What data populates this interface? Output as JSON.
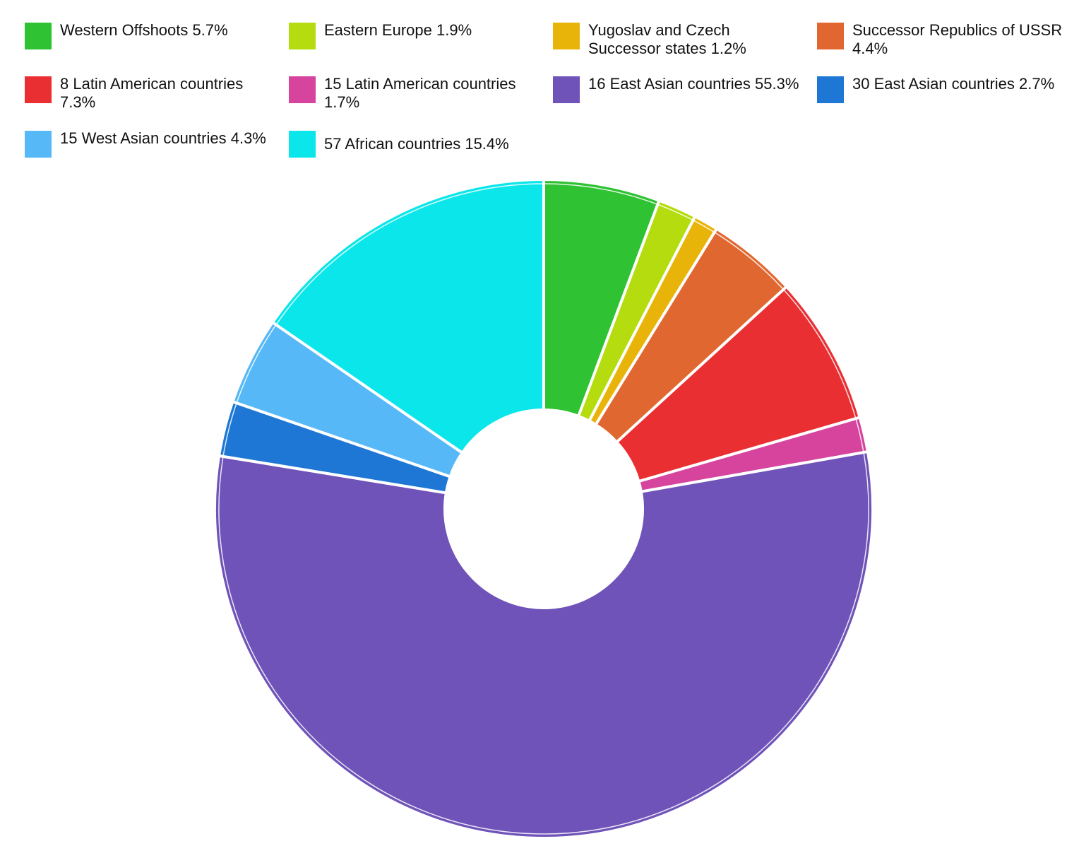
{
  "chart_data": {
    "type": "pie",
    "donut": true,
    "legend_position": "top",
    "slices": [
      {
        "name": "Western Offshoots",
        "value": 5.7,
        "label": "Western Offshoots 5.7%",
        "color": "#2fc232"
      },
      {
        "name": "Eastern Europe",
        "value": 1.9,
        "label": "Eastern Europe 1.9%",
        "color": "#b4dc0e"
      },
      {
        "name": "Yugoslav and Czech Successor states",
        "value": 1.2,
        "label": "Yugoslav and Czech Successor states 1.2%",
        "color": "#e9b40a"
      },
      {
        "name": "Successor Republics of USSR",
        "value": 4.4,
        "label": "Successor Republics of USSR 4.4%",
        "color": "#e06830"
      },
      {
        "name": "8 Latin American countries",
        "value": 7.3,
        "label": "8 Latin American countries 7.3%",
        "color": "#ea2f33"
      },
      {
        "name": "15 Latin American countries",
        "value": 1.7,
        "label": "15 Latin American countries 1.7%",
        "color": "#d6449e"
      },
      {
        "name": "16 East Asian countries",
        "value": 55.3,
        "label": "16 East Asian countries 55.3%",
        "color": "#6f53b8"
      },
      {
        "name": "30 East Asian countries",
        "value": 2.7,
        "label": "30 East Asian countries 2.7%",
        "color": "#1e77d4"
      },
      {
        "name": "15 West Asian countries",
        "value": 4.3,
        "label": "15 West Asian countries 4.3%",
        "color": "#56b8f6"
      },
      {
        "name": "57 African countries",
        "value": 15.4,
        "label": "57 African countries 15.4%",
        "color": "#0ae6ea"
      }
    ]
  }
}
